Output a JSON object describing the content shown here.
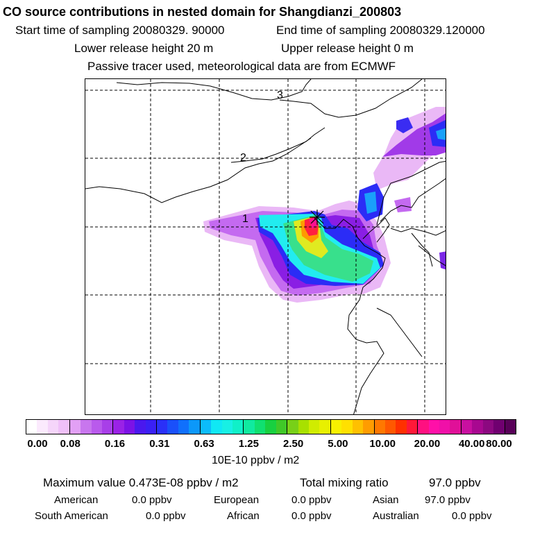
{
  "header": {
    "title": "CO  source contributions in nested domain for Shangdianzi_200803",
    "start_time": "Start time of sampling 20080329. 90000",
    "end_time": "End time of sampling 20080329.120000",
    "lower_release": "Lower release height   20 m",
    "upper_release": "Upper release height    0 m",
    "note": "Passive tracer used, meteorological data are from ECMWF"
  },
  "map": {
    "grid_labels": [
      "1",
      "2",
      "3"
    ],
    "receptor_marker": "receptor-x",
    "plume_colors": {
      "violet": "#d07bf0",
      "purple": "#9018e0",
      "blue": "#2030ff",
      "cyan": "#20f0f0",
      "green": "#30e090",
      "yellow": "#e8e820",
      "orange": "#ff9000",
      "red": "#ff2040",
      "magenta": "#ff0090"
    }
  },
  "colorbar": {
    "tick_labels": [
      "0.00",
      "0.08",
      "0.16",
      "0.31",
      "0.63",
      "1.25",
      "2.50",
      "5.00",
      "10.00",
      "20.00",
      "40.00",
      "80.00"
    ],
    "colors": [
      "#ffffff",
      "#fbeafd",
      "#f5d5fa",
      "#efc0f8",
      "#e2a0f5",
      "#c876ee",
      "#b95aec",
      "#a83fe8",
      "#9a22e6",
      "#7c12e6",
      "#4a18ee",
      "#3a20f4",
      "#2a30f8",
      "#1a50fa",
      "#1070fc",
      "#0c98fa",
      "#0cbcfa",
      "#10e8f4",
      "#18f0e4",
      "#10f0c8",
      "#10eaa0",
      "#10e070",
      "#18d040",
      "#40c828",
      "#78d018",
      "#a8e000",
      "#d0ec00",
      "#e8f000",
      "#f8f000",
      "#ffe000",
      "#ffc000",
      "#ff9c00",
      "#ff7800",
      "#ff5800",
      "#ff3000",
      "#ff1838",
      "#ff1080",
      "#ff10a8",
      "#f010a8",
      "#e01098",
      "#c810a0",
      "#a80890",
      "#8c0880",
      "#700070",
      "#580058"
    ],
    "unit": "10E-10 ppbv / m2"
  },
  "footer": {
    "max_value": "Maximum value  0.473E-08 ppbv / m2",
    "total_mixing": "Total mixing ratio",
    "total_mixing_value": "97.0 ppbv",
    "regions": [
      {
        "label": "American",
        "value": "0.0 ppbv"
      },
      {
        "label": "European",
        "value": "0.0 ppbv"
      },
      {
        "label": "Asian",
        "value": "97.0 ppbv"
      },
      {
        "label": "South American",
        "value": "0.0 ppbv"
      },
      {
        "label": "African",
        "value": "0.0 ppbv"
      },
      {
        "label": "Australian",
        "value": "0.0 ppbv"
      }
    ]
  }
}
